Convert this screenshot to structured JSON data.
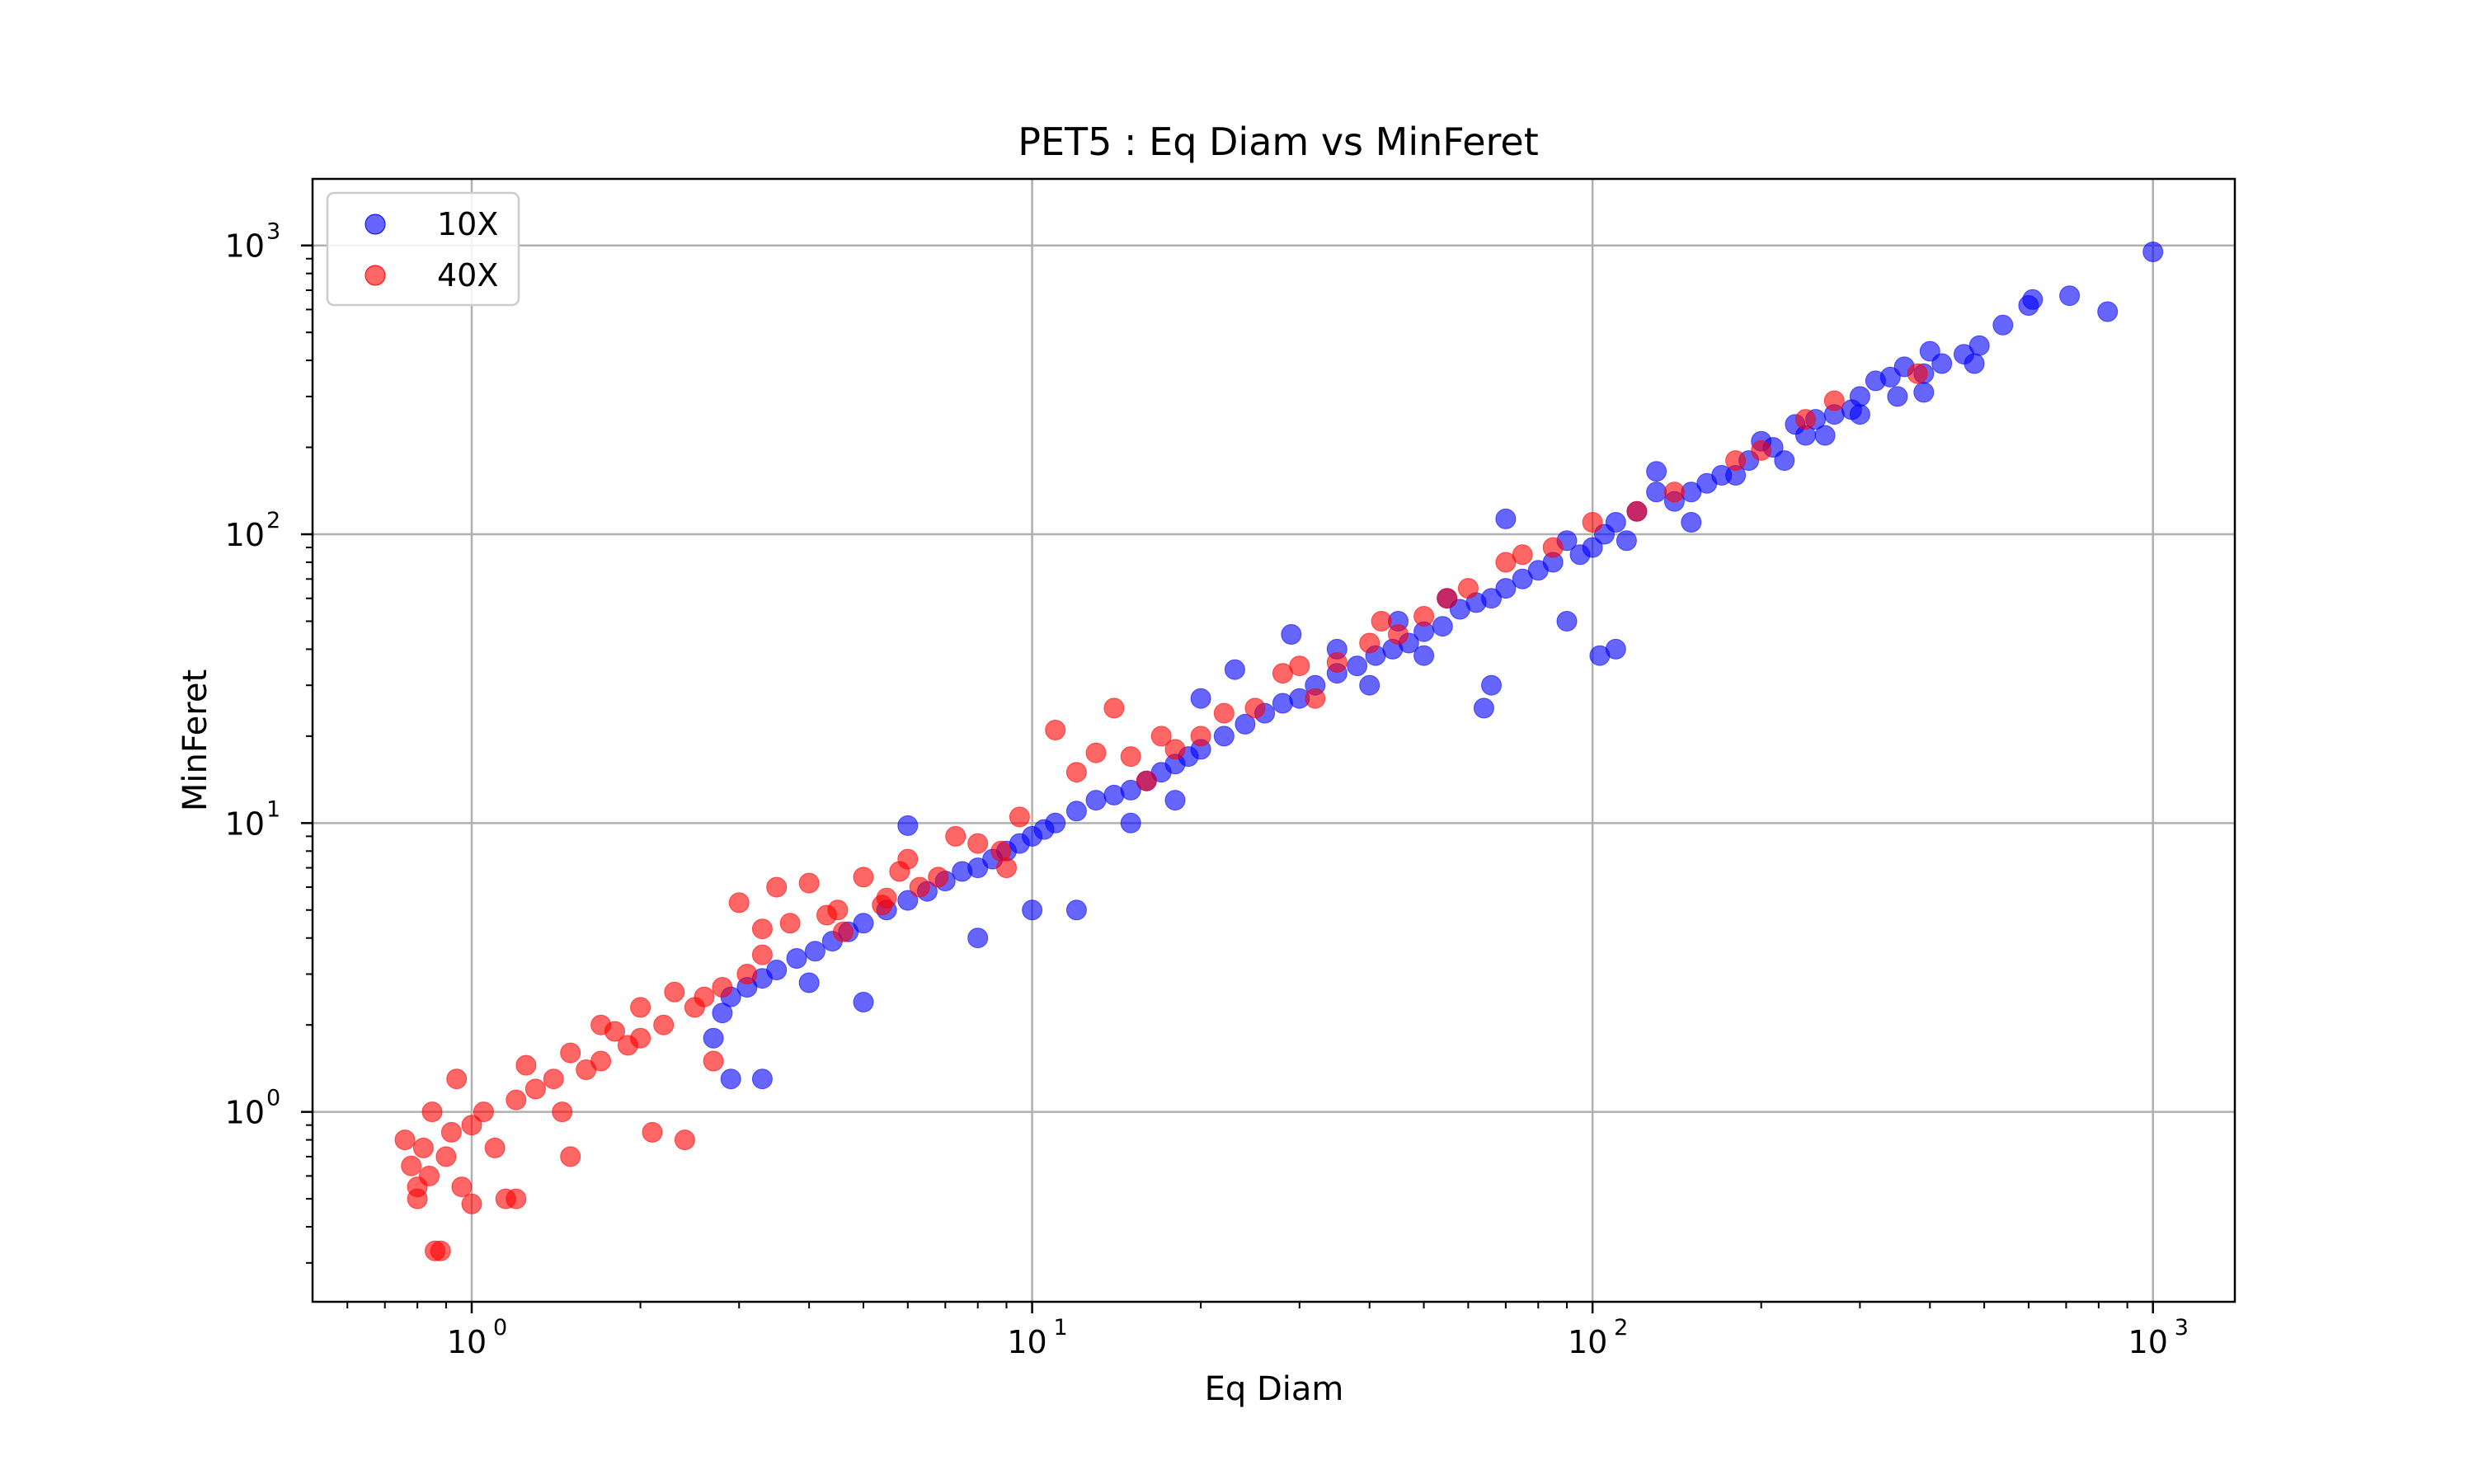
{
  "chart_data": {
    "type": "scatter",
    "title": "PET5 : Eq Diam vs MinFeret",
    "xlabel": "Eq Diam",
    "ylabel": "MinFeret",
    "x_scale": "log",
    "y_scale": "log",
    "xlim": [
      0.52,
      1400
    ],
    "ylim": [
      0.22,
      1700
    ],
    "grid": true,
    "legend_position": "top-left",
    "x_ticks": [
      {
        "value": 1,
        "base": "10",
        "exp": "0"
      },
      {
        "value": 10,
        "base": "10",
        "exp": "1"
      },
      {
        "value": 100,
        "base": "10",
        "exp": "2"
      },
      {
        "value": 1000,
        "base": "10",
        "exp": "3"
      }
    ],
    "y_ticks": [
      {
        "value": 1,
        "base": "10",
        "exp": "0"
      },
      {
        "value": 10,
        "base": "10",
        "exp": "1"
      },
      {
        "value": 100,
        "base": "10",
        "exp": "2"
      },
      {
        "value": 1000,
        "base": "10",
        "exp": "3"
      }
    ],
    "series": [
      {
        "name": "10X",
        "color": "#0000ff",
        "points": [
          [
            1000,
            950
          ],
          [
            830,
            590
          ],
          [
            710,
            670
          ],
          [
            610,
            650
          ],
          [
            600,
            620
          ],
          [
            540,
            530
          ],
          [
            490,
            450
          ],
          [
            480,
            390
          ],
          [
            460,
            420
          ],
          [
            420,
            390
          ],
          [
            400,
            430
          ],
          [
            390,
            360
          ],
          [
            390,
            310
          ],
          [
            360,
            380
          ],
          [
            340,
            350
          ],
          [
            320,
            340
          ],
          [
            300,
            300
          ],
          [
            290,
            270
          ],
          [
            270,
            260
          ],
          [
            250,
            250
          ],
          [
            240,
            220
          ],
          [
            230,
            240
          ],
          [
            210,
            200
          ],
          [
            200,
            210
          ],
          [
            190,
            180
          ],
          [
            170,
            160
          ],
          [
            160,
            150
          ],
          [
            150,
            140
          ],
          [
            140,
            130
          ],
          [
            130,
            140
          ],
          [
            120,
            120
          ],
          [
            115,
            95
          ],
          [
            110,
            110
          ],
          [
            105,
            100
          ],
          [
            100,
            90
          ],
          [
            95,
            85
          ],
          [
            90,
            95
          ],
          [
            85,
            80
          ],
          [
            80,
            75
          ],
          [
            75,
            70
          ],
          [
            70,
            65
          ],
          [
            66,
            60
          ],
          [
            62,
            58
          ],
          [
            58,
            55
          ],
          [
            54,
            48
          ],
          [
            50,
            46
          ],
          [
            47,
            42
          ],
          [
            44,
            40
          ],
          [
            41,
            38
          ],
          [
            38,
            35
          ],
          [
            35,
            33
          ],
          [
            32,
            30
          ],
          [
            30,
            27
          ],
          [
            28,
            26
          ],
          [
            26,
            24
          ],
          [
            24,
            22
          ],
          [
            22,
            20
          ],
          [
            20,
            18
          ],
          [
            19,
            17
          ],
          [
            18,
            16
          ],
          [
            17,
            15
          ],
          [
            16,
            14
          ],
          [
            15,
            13
          ],
          [
            14,
            12.5
          ],
          [
            13,
            12
          ],
          [
            12,
            11
          ],
          [
            11,
            10
          ],
          [
            10.5,
            9.5
          ],
          [
            10,
            9
          ],
          [
            9.5,
            8.5
          ],
          [
            9,
            8
          ],
          [
            8.5,
            7.5
          ],
          [
            8,
            7
          ],
          [
            7.5,
            6.8
          ],
          [
            7,
            6.3
          ],
          [
            6.5,
            5.8
          ],
          [
            6,
            5.4
          ],
          [
            5.5,
            5
          ],
          [
            5,
            4.5
          ],
          [
            4.7,
            4.2
          ],
          [
            4.4,
            3.9
          ],
          [
            4.1,
            3.6
          ],
          [
            3.8,
            3.4
          ],
          [
            3.5,
            3.1
          ],
          [
            3.3,
            2.9
          ],
          [
            3.1,
            2.7
          ],
          [
            2.9,
            2.5
          ],
          [
            2.8,
            2.2
          ],
          [
            2.7,
            1.8
          ],
          [
            3.3,
            1.3
          ],
          [
            2.9,
            1.3
          ],
          [
            66,
            30
          ],
          [
            64,
            25
          ],
          [
            29,
            45
          ],
          [
            70,
            113
          ],
          [
            130,
            165
          ],
          [
            110,
            40
          ],
          [
            103,
            38
          ],
          [
            90,
            50
          ],
          [
            6,
            9.8
          ],
          [
            10,
            5
          ],
          [
            12,
            5
          ],
          [
            20,
            27
          ],
          [
            23,
            34
          ],
          [
            40,
            30
          ],
          [
            45,
            50
          ],
          [
            15,
            10
          ],
          [
            18,
            12
          ],
          [
            50,
            38
          ],
          [
            55,
            60
          ],
          [
            35,
            40
          ],
          [
            8,
            4
          ],
          [
            5,
            2.4
          ],
          [
            4,
            2.8
          ],
          [
            150,
            110
          ],
          [
            180,
            160
          ],
          [
            220,
            180
          ],
          [
            300,
            260
          ],
          [
            350,
            300
          ],
          [
            260,
            220
          ]
        ]
      },
      {
        "name": "40X",
        "color": "#ff0000",
        "points": [
          [
            0.76,
            0.8
          ],
          [
            0.78,
            0.65
          ],
          [
            0.8,
            0.5
          ],
          [
            0.82,
            0.75
          ],
          [
            0.84,
            0.6
          ],
          [
            0.86,
            0.33
          ],
          [
            0.88,
            0.33
          ],
          [
            0.9,
            0.7
          ],
          [
            0.92,
            0.85
          ],
          [
            0.94,
            1.3
          ],
          [
            0.96,
            0.55
          ],
          [
            1.0,
            0.9
          ],
          [
            1.0,
            0.48
          ],
          [
            1.05,
            1.0
          ],
          [
            1.1,
            0.75
          ],
          [
            1.15,
            0.5
          ],
          [
            1.2,
            1.1
          ],
          [
            1.3,
            1.2
          ],
          [
            1.4,
            1.3
          ],
          [
            1.5,
            1.6
          ],
          [
            1.5,
            0.7
          ],
          [
            1.6,
            1.4
          ],
          [
            1.7,
            1.5
          ],
          [
            1.8,
            1.9
          ],
          [
            1.9,
            1.7
          ],
          [
            2.0,
            1.8
          ],
          [
            2.1,
            0.85
          ],
          [
            2.2,
            2.0
          ],
          [
            2.3,
            2.6
          ],
          [
            2.4,
            0.8
          ],
          [
            2.5,
            2.3
          ],
          [
            2.6,
            2.5
          ],
          [
            2.8,
            2.7
          ],
          [
            3.0,
            5.3
          ],
          [
            3.1,
            3.0
          ],
          [
            3.3,
            3.5
          ],
          [
            3.5,
            6.0
          ],
          [
            3.7,
            4.5
          ],
          [
            4.0,
            6.2
          ],
          [
            4.3,
            4.8
          ],
          [
            4.6,
            4.2
          ],
          [
            5.0,
            6.5
          ],
          [
            5.4,
            5.2
          ],
          [
            5.8,
            6.8
          ],
          [
            6.3,
            6.0
          ],
          [
            6.8,
            6.5
          ],
          [
            7.3,
            9.0
          ],
          [
            8.0,
            8.5
          ],
          [
            8.8,
            8.0
          ],
          [
            9.5,
            10.5
          ],
          [
            11,
            21
          ],
          [
            12,
            15
          ],
          [
            14,
            25
          ],
          [
            15,
            17
          ],
          [
            16,
            14
          ],
          [
            18,
            18
          ],
          [
            20,
            20
          ],
          [
            22,
            24
          ],
          [
            25,
            25
          ],
          [
            28,
            33
          ],
          [
            32,
            27
          ],
          [
            35,
            36
          ],
          [
            40,
            42
          ],
          [
            42,
            50
          ],
          [
            45,
            45
          ],
          [
            50,
            52
          ],
          [
            55,
            60
          ],
          [
            60,
            65
          ],
          [
            70,
            80
          ],
          [
            75,
            85
          ],
          [
            85,
            90
          ],
          [
            100,
            110
          ],
          [
            120,
            120
          ],
          [
            140,
            140
          ],
          [
            180,
            180
          ],
          [
            200,
            195
          ],
          [
            240,
            250
          ],
          [
            270,
            290
          ],
          [
            380,
            360
          ],
          [
            1.2,
            0.5
          ],
          [
            0.85,
            1.0
          ],
          [
            1.25,
            1.45
          ],
          [
            1.45,
            1.0
          ],
          [
            2.7,
            1.5
          ],
          [
            6,
            7.5
          ],
          [
            9,
            7
          ],
          [
            13,
            17.5
          ],
          [
            17,
            20
          ],
          [
            30,
            35
          ],
          [
            3.3,
            4.3
          ],
          [
            4.5,
            5.0
          ],
          [
            5.5,
            5.5
          ],
          [
            2.0,
            2.3
          ],
          [
            1.7,
            2.0
          ],
          [
            0.8,
            0.55
          ]
        ]
      }
    ]
  }
}
